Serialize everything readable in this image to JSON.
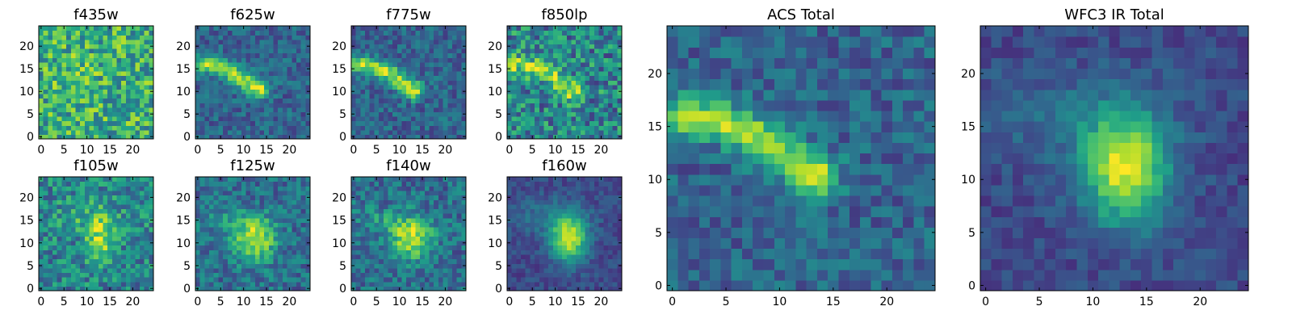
{
  "chart_data": [
    {
      "type": "heatmap",
      "title": "f435w",
      "xticks": [
        "0",
        "5",
        "10",
        "15",
        "20"
      ],
      "yticks": [
        "0",
        "5",
        "10",
        "15",
        "20"
      ],
      "xlim": [
        0,
        24
      ],
      "ylim": [
        0,
        24
      ],
      "grid_size": 25,
      "colormap": "viridis",
      "pattern": "noise",
      "peak": [
        12,
        12
      ]
    },
    {
      "type": "heatmap",
      "title": "f625w",
      "xticks": [
        "0",
        "5",
        "10",
        "15",
        "20"
      ],
      "yticks": [
        "0",
        "5",
        "10",
        "15",
        "20"
      ],
      "xlim": [
        0,
        24
      ],
      "ylim": [
        0,
        24
      ],
      "grid_size": 25,
      "colormap": "viridis",
      "pattern": "arc",
      "peak": [
        13,
        10
      ]
    },
    {
      "type": "heatmap",
      "title": "f775w",
      "xticks": [
        "0",
        "5",
        "10",
        "15",
        "20"
      ],
      "yticks": [
        "0",
        "5",
        "10",
        "15",
        "20"
      ],
      "xlim": [
        0,
        24
      ],
      "ylim": [
        0,
        24
      ],
      "grid_size": 25,
      "colormap": "viridis",
      "pattern": "arc",
      "peak": [
        13,
        10
      ]
    },
    {
      "type": "heatmap",
      "title": "f850lp",
      "xticks": [
        "0",
        "5",
        "10",
        "15",
        "20"
      ],
      "yticks": [
        "0",
        "5",
        "10",
        "15",
        "20"
      ],
      "xlim": [
        0,
        24
      ],
      "ylim": [
        0,
        24
      ],
      "grid_size": 25,
      "colormap": "viridis",
      "pattern": "arc_noisy",
      "peak": [
        13,
        10
      ]
    },
    {
      "type": "heatmap",
      "title": "f105w",
      "xticks": [
        "0",
        "5",
        "10",
        "15",
        "20"
      ],
      "yticks": [
        "0",
        "5",
        "10",
        "15",
        "20"
      ],
      "xlim": [
        0,
        24
      ],
      "ylim": [
        0,
        24
      ],
      "grid_size": 25,
      "colormap": "viridis",
      "pattern": "blob_noisy",
      "peak": [
        13,
        11
      ]
    },
    {
      "type": "heatmap",
      "title": "f125w",
      "xticks": [
        "0",
        "5",
        "10",
        "15",
        "20"
      ],
      "yticks": [
        "0",
        "5",
        "10",
        "15",
        "20"
      ],
      "xlim": [
        0,
        24
      ],
      "ylim": [
        0,
        24
      ],
      "grid_size": 25,
      "colormap": "viridis",
      "pattern": "blob",
      "peak": [
        13,
        11
      ]
    },
    {
      "type": "heatmap",
      "title": "f140w",
      "xticks": [
        "0",
        "5",
        "10",
        "15",
        "20"
      ],
      "yticks": [
        "0",
        "5",
        "10",
        "15",
        "20"
      ],
      "xlim": [
        0,
        24
      ],
      "ylim": [
        0,
        24
      ],
      "grid_size": 25,
      "colormap": "viridis",
      "pattern": "blob",
      "peak": [
        13,
        11
      ]
    },
    {
      "type": "heatmap",
      "title": "f160w",
      "xticks": [
        "0",
        "5",
        "10",
        "15",
        "20"
      ],
      "yticks": [
        "0",
        "5",
        "10",
        "15",
        "20"
      ],
      "xlim": [
        0,
        24
      ],
      "ylim": [
        0,
        24
      ],
      "grid_size": 25,
      "colormap": "viridis",
      "pattern": "blob_smooth",
      "peak": [
        13,
        11
      ]
    },
    {
      "type": "heatmap",
      "title": "ACS Total",
      "xticks": [
        "0",
        "5",
        "10",
        "15",
        "20"
      ],
      "yticks": [
        "0",
        "5",
        "10",
        "15",
        "20"
      ],
      "xlim": [
        0,
        24
      ],
      "ylim": [
        0,
        24
      ],
      "grid_size": 25,
      "colormap": "viridis",
      "pattern": "arc",
      "peak": [
        13,
        11
      ]
    },
    {
      "type": "heatmap",
      "title": "WFC3 IR Total",
      "xticks": [
        "0",
        "5",
        "10",
        "15",
        "20"
      ],
      "yticks": [
        "0",
        "5",
        "10",
        "15",
        "20"
      ],
      "xlim": [
        0,
        24
      ],
      "ylim": [
        0,
        24
      ],
      "grid_size": 25,
      "colormap": "viridis",
      "pattern": "blob_smooth",
      "peak": [
        13,
        11
      ]
    }
  ]
}
